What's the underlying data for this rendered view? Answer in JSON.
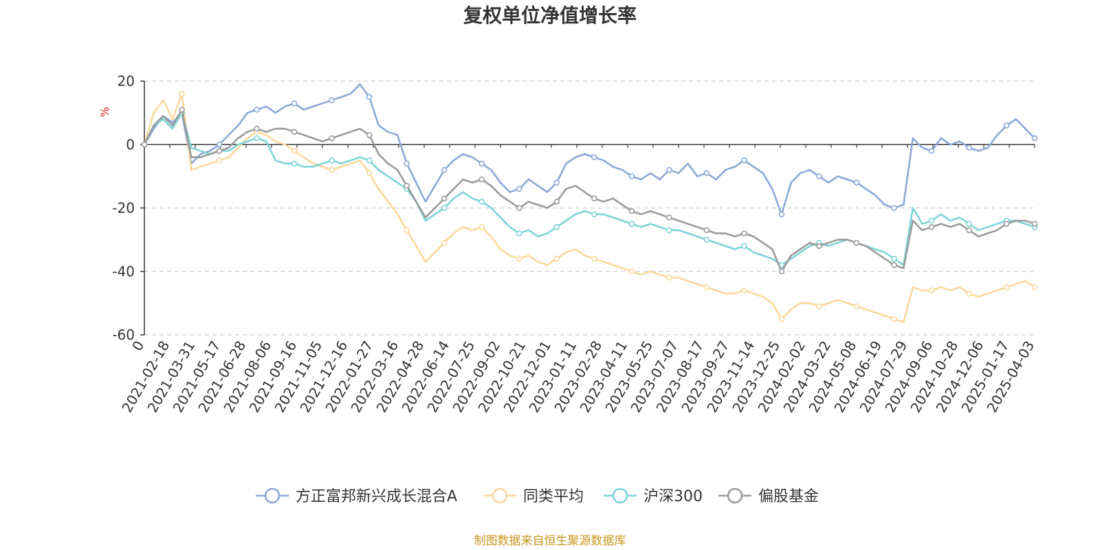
{
  "chart_data": {
    "type": "line",
    "title": "复权单位净值增长率",
    "ylabel": "%",
    "ylim": [
      -60,
      20
    ],
    "yticks": [
      20,
      0,
      -20,
      -40,
      -60
    ],
    "grid": true,
    "legend_position": "bottom-center",
    "source": "制图数据来自恒生聚源数据库",
    "x_ticks": [
      "0",
      "2021-02-18",
      "2021-03-31",
      "2021-05-17",
      "2021-06-28",
      "2021-08-06",
      "2021-09-16",
      "2021-11-05",
      "2021-12-16",
      "2022-01-27",
      "2022-03-16",
      "2022-04-28",
      "2022-06-14",
      "2022-07-25",
      "2022-09-02",
      "2022-10-21",
      "2022-12-01",
      "2023-01-11",
      "2023-02-28",
      "2023-04-11",
      "2023-05-25",
      "2023-07-07",
      "2023-08-17",
      "2023-09-27",
      "2023-11-14",
      "2023-12-25",
      "2024-02-02",
      "2024-03-22",
      "2024-05-08",
      "2024-06-19",
      "2024-07-29",
      "2024-09-06",
      "2024-10-28",
      "2024-12-06",
      "2025-01-17",
      "2025-04-03"
    ],
    "series": [
      {
        "name": "方正富邦新兴成长混合A",
        "color": "#8aa9d6",
        "values": [
          0,
          5,
          9,
          7,
          10,
          -6,
          -3,
          -2,
          0,
          3,
          6,
          10,
          11,
          12,
          10,
          12,
          13,
          11,
          12,
          13,
          14,
          15,
          16,
          19,
          15,
          6,
          4,
          3,
          -6,
          -12,
          -18,
          -13,
          -8,
          -5,
          -3,
          -4,
          -6,
          -8,
          -12,
          -15,
          -14,
          -11,
          -13,
          -15,
          -12,
          -6,
          -4,
          -3,
          -4,
          -5,
          -7,
          -8,
          -10,
          -11,
          -9,
          -11,
          -8,
          -9,
          -6,
          -10,
          -9,
          -11,
          -8,
          -7,
          -5,
          -7,
          -9,
          -14,
          -22,
          -12,
          -9,
          -8,
          -10,
          -12,
          -10,
          -11,
          -12,
          -14,
          -16,
          -19,
          -20,
          -19,
          2,
          -1,
          -2,
          2,
          0,
          1,
          -1,
          -2,
          -1,
          3,
          6,
          8,
          5,
          2
        ]
      },
      {
        "name": "同类平均",
        "color": "#fbd89a",
        "values": [
          0,
          10,
          14,
          8,
          16,
          -8,
          -7,
          -6,
          -5,
          -4,
          -1,
          2,
          4,
          3,
          1,
          0,
          -2,
          -4,
          -6,
          -7,
          -8,
          -7,
          -6,
          -5,
          -9,
          -14,
          -18,
          -22,
          -27,
          -32,
          -37,
          -34,
          -31,
          -28,
          -26,
          -27,
          -26,
          -29,
          -33,
          -35,
          -36,
          -35,
          -37,
          -38,
          -36,
          -34,
          -33,
          -35,
          -36,
          -37,
          -38,
          -39,
          -40,
          -41,
          -40,
          -41,
          -42,
          -42,
          -43,
          -44,
          -45,
          -46,
          -47,
          -47,
          -46,
          -47,
          -48,
          -50,
          -55,
          -52,
          -50,
          -50,
          -51,
          -50,
          -49,
          -50,
          -51,
          -52,
          -53,
          -54,
          -55,
          -56,
          -45,
          -46,
          -46,
          -45,
          -46,
          -45,
          -47,
          -48,
          -47,
          -46,
          -45,
          -44,
          -43,
          -45
        ]
      },
      {
        "name": "沪深300",
        "color": "#7dd3d6",
        "values": [
          0,
          6,
          8,
          5,
          10,
          -1,
          -2,
          -3,
          -2,
          -2,
          0,
          1,
          2,
          1,
          -5,
          -6,
          -6,
          -7,
          -7,
          -6,
          -5,
          -6,
          -5,
          -4,
          -5,
          -8,
          -10,
          -12,
          -14,
          -18,
          -24,
          -22,
          -20,
          -17,
          -15,
          -17,
          -18,
          -20,
          -23,
          -26,
          -28,
          -27,
          -29,
          -28,
          -26,
          -24,
          -22,
          -21,
          -22,
          -22,
          -23,
          -24,
          -25,
          -26,
          -25,
          -26,
          -27,
          -27,
          -28,
          -29,
          -30,
          -31,
          -32,
          -33,
          -32,
          -34,
          -35,
          -36,
          -38,
          -36,
          -34,
          -32,
          -31,
          -32,
          -31,
          -30,
          -31,
          -32,
          -33,
          -34,
          -36,
          -38,
          -20,
          -25,
          -24,
          -22,
          -24,
          -23,
          -25,
          -27,
          -26,
          -25,
          -24,
          -24,
          -25,
          -26
        ]
      },
      {
        "name": "偏股基金",
        "color": "#9a9a9a",
        "values": [
          0,
          6,
          9,
          6,
          11,
          -4,
          -4,
          -3,
          -2,
          -1,
          2,
          4,
          5,
          4,
          5,
          5,
          4,
          3,
          2,
          1,
          2,
          3,
          4,
          5,
          3,
          -3,
          -6,
          -8,
          -13,
          -18,
          -23,
          -20,
          -17,
          -14,
          -11,
          -12,
          -11,
          -13,
          -16,
          -18,
          -20,
          -18,
          -19,
          -20,
          -18,
          -14,
          -13,
          -15,
          -17,
          -18,
          -17,
          -19,
          -21,
          -22,
          -21,
          -22,
          -23,
          -24,
          -25,
          -26,
          -27,
          -28,
          -28,
          -29,
          -28,
          -29,
          -31,
          -33,
          -40,
          -35,
          -33,
          -31,
          -32,
          -31,
          -30,
          -30,
          -31,
          -32,
          -34,
          -36,
          -38,
          -39,
          -24,
          -27,
          -26,
          -25,
          -26,
          -25,
          -27,
          -29,
          -28,
          -27,
          -25,
          -24,
          -24,
          -25
        ]
      }
    ]
  }
}
